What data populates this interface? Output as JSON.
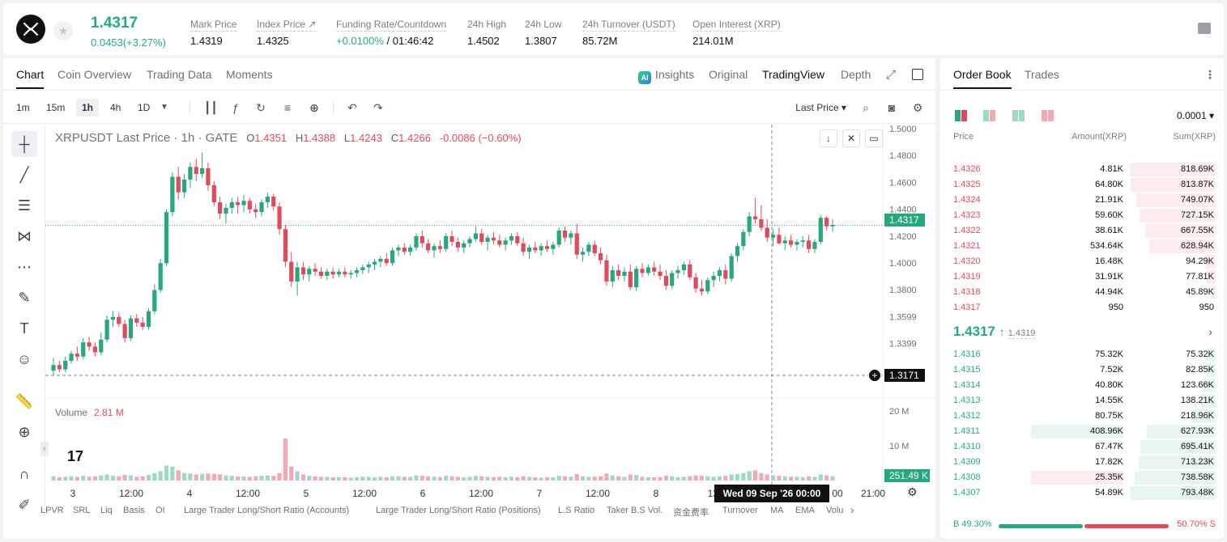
{
  "ticker": {
    "last_price": "1.4317",
    "change": "0.0453(+3.27%)",
    "stats": [
      {
        "label": "Mark Price",
        "value": "1.4319"
      },
      {
        "label": "Index Price ↗",
        "value": "1.4325"
      },
      {
        "label": "Funding Rate/Countdown",
        "value_green": "+0.0100%",
        "value": " / 01:46:42"
      },
      {
        "label": "24h High",
        "value": "1.4502"
      },
      {
        "label": "24h Low",
        "value": "1.3807"
      },
      {
        "label": "24h Turnover (USDT)",
        "value": "85.72M"
      },
      {
        "label": "Open Interest (XRP)",
        "value": "214.01M"
      }
    ]
  },
  "chart_tabs": [
    "Chart",
    "Coin Overview",
    "Trading Data",
    "Moments"
  ],
  "view_tabs": {
    "insights": "Insights",
    "original": "Original",
    "tradingview": "TradingView",
    "depth": "Depth",
    "ai_badge": "AI"
  },
  "intervals": [
    "1m",
    "15m",
    "1h",
    "4h",
    "1D"
  ],
  "price_source": "Last Price ▾",
  "legend": {
    "symbol": "XRPUSDT Last Price · 1h · GATE",
    "o_label": "O",
    "o": "1.4351",
    "h_label": "H",
    "h": "1.4388",
    "l_label": "L",
    "l": "1.4243",
    "c_label": "C",
    "c": "1.4266",
    "chg": "-0.0086 (−0.60%)"
  },
  "volume_legend": {
    "label": "Volume",
    "value": "2.81 M"
  },
  "tv_logo": "17",
  "crosshair_date": "Wed 09 Sep '26   00:00",
  "bottom_indicators": [
    "LPVR",
    "SRL",
    "Liq",
    "Basis",
    "OI",
    "Large Trader Long/Short Ratio (Accounts)",
    "Large Trader Long/Short Ratio (Positions)",
    "L.S Ratio",
    "Taker B.S Vol.",
    "资金费率",
    "Turnover",
    "MA",
    "EMA",
    "Volu"
  ],
  "chart_data": {
    "type": "candlestick",
    "price_axis": [
      "1.5000",
      "1.4800",
      "1.4600",
      "1.4400",
      "1.4200",
      "1.4000",
      "1.3800",
      "1.3599",
      "1.3399"
    ],
    "price_min": 1.32,
    "price_max": 1.5,
    "price_tags": {
      "current": "1.4317",
      "crosshair": "1.3171"
    },
    "volume_axis": [
      "20 M",
      "10 M"
    ],
    "volume_tag": "251.49 K",
    "time_axis": [
      "3",
      "12:00",
      "4",
      "12:00",
      "5",
      "12:00",
      "6",
      "12:00",
      "7",
      "12:00",
      "8",
      "12:",
      "00",
      "21:00"
    ],
    "colors": {
      "up": "#26a77c",
      "down": "#e04a5a",
      "vol_up": "#9fd9c4",
      "vol_down": "#f3a9b3"
    },
    "candles": [
      [
        1.329,
        1.338,
        1.326,
        1.333,
        0.9
      ],
      [
        1.333,
        1.336,
        1.328,
        1.33,
        0.7
      ],
      [
        1.33,
        1.339,
        1.328,
        1.336,
        0.8
      ],
      [
        1.336,
        1.343,
        1.334,
        1.341,
        0.9
      ],
      [
        1.341,
        1.346,
        1.336,
        1.339,
        0.8
      ],
      [
        1.339,
        1.352,
        1.337,
        1.349,
        1.0
      ],
      [
        1.349,
        1.353,
        1.343,
        1.346,
        0.8
      ],
      [
        1.346,
        1.349,
        1.339,
        1.342,
        0.9
      ],
      [
        1.342,
        1.356,
        1.34,
        1.351,
        1.1
      ],
      [
        1.351,
        1.368,
        1.349,
        1.365,
        1.3
      ],
      [
        1.365,
        1.371,
        1.36,
        1.367,
        1.0
      ],
      [
        1.367,
        1.37,
        1.36,
        1.362,
        0.9
      ],
      [
        1.362,
        1.365,
        1.349,
        1.352,
        1.2
      ],
      [
        1.352,
        1.368,
        1.35,
        1.366,
        1.1
      ],
      [
        1.366,
        1.369,
        1.36,
        1.363,
        0.8
      ],
      [
        1.363,
        1.367,
        1.358,
        1.36,
        0.9
      ],
      [
        1.36,
        1.373,
        1.358,
        1.371,
        1.2
      ],
      [
        1.371,
        1.39,
        1.369,
        1.386,
        1.6
      ],
      [
        1.386,
        1.408,
        1.384,
        1.405,
        2.0
      ],
      [
        1.405,
        1.443,
        1.403,
        1.441,
        3.2
      ],
      [
        1.441,
        1.469,
        1.438,
        1.466,
        3.0
      ],
      [
        1.466,
        1.473,
        1.45,
        1.455,
        2.2
      ],
      [
        1.455,
        1.468,
        1.451,
        1.464,
        1.6
      ],
      [
        1.464,
        1.476,
        1.458,
        1.473,
        1.5
      ],
      [
        1.473,
        1.479,
        1.463,
        1.468,
        1.3
      ],
      [
        1.468,
        1.483,
        1.465,
        1.472,
        1.4
      ],
      [
        1.472,
        1.476,
        1.456,
        1.46,
        1.5
      ],
      [
        1.46,
        1.463,
        1.445,
        1.448,
        1.4
      ],
      [
        1.448,
        1.452,
        1.436,
        1.44,
        1.3
      ],
      [
        1.44,
        1.447,
        1.433,
        1.444,
        1.1
      ],
      [
        1.444,
        1.451,
        1.44,
        1.448,
        1.0
      ],
      [
        1.448,
        1.452,
        1.44,
        1.446,
        0.9
      ],
      [
        1.446,
        1.453,
        1.441,
        1.449,
        0.9
      ],
      [
        1.449,
        1.451,
        1.44,
        1.443,
        0.8
      ],
      [
        1.443,
        1.447,
        1.437,
        1.441,
        0.9
      ],
      [
        1.441,
        1.45,
        1.438,
        1.448,
        1.0
      ],
      [
        1.448,
        1.455,
        1.444,
        1.452,
        1.1
      ],
      [
        1.452,
        1.454,
        1.442,
        1.445,
        1.0
      ],
      [
        1.445,
        1.448,
        1.425,
        1.429,
        1.6
      ],
      [
        1.429,
        1.432,
        1.402,
        1.406,
        9.0
      ],
      [
        1.406,
        1.413,
        1.388,
        1.392,
        3.0
      ],
      [
        1.392,
        1.406,
        1.382,
        1.402,
        2.0
      ],
      [
        1.402,
        1.406,
        1.393,
        1.397,
        1.3
      ],
      [
        1.397,
        1.403,
        1.392,
        1.401,
        1.0
      ],
      [
        1.401,
        1.405,
        1.396,
        1.399,
        0.9
      ],
      [
        1.399,
        1.402,
        1.394,
        1.396,
        0.8
      ],
      [
        1.396,
        1.401,
        1.393,
        1.399,
        0.8
      ],
      [
        1.399,
        1.402,
        1.394,
        1.397,
        0.7
      ],
      [
        1.397,
        1.401,
        1.395,
        1.399,
        0.7
      ],
      [
        1.399,
        1.402,
        1.395,
        1.397,
        0.7
      ],
      [
        1.397,
        1.4,
        1.394,
        1.398,
        0.6
      ],
      [
        1.398,
        1.402,
        1.395,
        1.4,
        0.7
      ],
      [
        1.4,
        1.404,
        1.397,
        1.402,
        0.8
      ],
      [
        1.402,
        1.406,
        1.398,
        1.404,
        0.8
      ],
      [
        1.404,
        1.408,
        1.4,
        1.406,
        0.7
      ],
      [
        1.406,
        1.41,
        1.402,
        1.408,
        0.8
      ],
      [
        1.408,
        1.412,
        1.403,
        1.405,
        0.7
      ],
      [
        1.405,
        1.416,
        1.403,
        1.414,
        0.9
      ],
      [
        1.414,
        1.418,
        1.41,
        1.416,
        0.9
      ],
      [
        1.416,
        1.419,
        1.411,
        1.413,
        0.8
      ],
      [
        1.413,
        1.418,
        1.41,
        1.416,
        0.8
      ],
      [
        1.416,
        1.426,
        1.414,
        1.424,
        1.1
      ],
      [
        1.424,
        1.428,
        1.416,
        1.419,
        1.0
      ],
      [
        1.419,
        1.422,
        1.412,
        1.414,
        0.9
      ],
      [
        1.414,
        1.419,
        1.409,
        1.417,
        0.8
      ],
      [
        1.417,
        1.421,
        1.412,
        1.415,
        0.7
      ],
      [
        1.415,
        1.426,
        1.413,
        1.424,
        1.0
      ],
      [
        1.424,
        1.428,
        1.417,
        1.42,
        0.9
      ],
      [
        1.42,
        1.423,
        1.413,
        1.416,
        0.8
      ],
      [
        1.416,
        1.421,
        1.412,
        1.419,
        0.7
      ],
      [
        1.419,
        1.424,
        1.416,
        1.422,
        0.8
      ],
      [
        1.422,
        1.431,
        1.42,
        1.426,
        1.0
      ],
      [
        1.426,
        1.429,
        1.418,
        1.42,
        0.9
      ],
      [
        1.42,
        1.425,
        1.414,
        1.423,
        0.8
      ],
      [
        1.423,
        1.427,
        1.418,
        1.421,
        0.7
      ],
      [
        1.421,
        1.425,
        1.416,
        1.418,
        0.8
      ],
      [
        1.418,
        1.423,
        1.414,
        1.421,
        0.7
      ],
      [
        1.421,
        1.426,
        1.418,
        1.424,
        0.8
      ],
      [
        1.424,
        1.427,
        1.417,
        1.419,
        0.7
      ],
      [
        1.419,
        1.423,
        1.41,
        1.413,
        0.9
      ],
      [
        1.413,
        1.418,
        1.408,
        1.416,
        0.8
      ],
      [
        1.416,
        1.42,
        1.412,
        1.414,
        0.7
      ],
      [
        1.414,
        1.419,
        1.41,
        1.417,
        0.6
      ],
      [
        1.417,
        1.421,
        1.413,
        1.415,
        0.7
      ],
      [
        1.415,
        1.42,
        1.411,
        1.418,
        0.7
      ],
      [
        1.418,
        1.43,
        1.416,
        1.428,
        1.0
      ],
      [
        1.428,
        1.431,
        1.42,
        1.423,
        0.9
      ],
      [
        1.423,
        1.428,
        1.418,
        1.426,
        0.8
      ],
      [
        1.426,
        1.433,
        1.408,
        1.411,
        1.4
      ],
      [
        1.411,
        1.416,
        1.406,
        1.413,
        0.9
      ],
      [
        1.413,
        1.42,
        1.41,
        1.418,
        0.8
      ],
      [
        1.418,
        1.421,
        1.41,
        1.412,
        0.8
      ],
      [
        1.412,
        1.416,
        1.404,
        1.407,
        0.9
      ],
      [
        1.407,
        1.411,
        1.389,
        1.392,
        1.5
      ],
      [
        1.392,
        1.403,
        1.388,
        1.4,
        1.1
      ],
      [
        1.4,
        1.404,
        1.393,
        1.396,
        0.9
      ],
      [
        1.396,
        1.402,
        1.392,
        1.399,
        0.8
      ],
      [
        1.399,
        1.404,
        1.386,
        1.388,
        1.3
      ],
      [
        1.388,
        1.403,
        1.385,
        1.401,
        1.2
      ],
      [
        1.401,
        1.405,
        1.395,
        1.398,
        0.8
      ],
      [
        1.398,
        1.404,
        1.396,
        1.402,
        0.7
      ],
      [
        1.402,
        1.406,
        1.396,
        1.399,
        0.7
      ],
      [
        1.399,
        1.404,
        1.393,
        1.396,
        0.7
      ],
      [
        1.396,
        1.4,
        1.386,
        1.389,
        1.0
      ],
      [
        1.389,
        1.4,
        1.387,
        1.398,
        0.9
      ],
      [
        1.398,
        1.403,
        1.394,
        1.4,
        0.7
      ],
      [
        1.4,
        1.406,
        1.397,
        1.404,
        0.8
      ],
      [
        1.404,
        1.407,
        1.393,
        1.395,
        0.9
      ],
      [
        1.395,
        1.398,
        1.384,
        1.387,
        1.1
      ],
      [
        1.387,
        1.393,
        1.382,
        1.385,
        1.0
      ],
      [
        1.385,
        1.395,
        1.383,
        1.393,
        0.9
      ],
      [
        1.393,
        1.399,
        1.388,
        1.396,
        0.8
      ],
      [
        1.396,
        1.402,
        1.392,
        1.4,
        0.9
      ],
      [
        1.4,
        1.404,
        1.39,
        1.394,
        1.0
      ],
      [
        1.394,
        1.412,
        1.392,
        1.41,
        1.3
      ],
      [
        1.41,
        1.419,
        1.406,
        1.417,
        1.4
      ],
      [
        1.417,
        1.429,
        1.414,
        1.427,
        1.6
      ],
      [
        1.427,
        1.441,
        1.424,
        1.438,
        2.0
      ],
      [
        1.438,
        1.451,
        1.433,
        1.436,
        2.2
      ],
      [
        1.436,
        1.446,
        1.428,
        1.43,
        1.6
      ],
      [
        1.43,
        1.436,
        1.42,
        1.423,
        1.3
      ],
      [
        1.423,
        1.429,
        1.417,
        1.425,
        1.1
      ],
      [
        1.425,
        1.43,
        1.418,
        1.419,
        1.0
      ],
      [
        1.419,
        1.424,
        1.414,
        1.421,
        0.9
      ],
      [
        1.421,
        1.425,
        1.416,
        1.418,
        0.8
      ],
      [
        1.418,
        1.422,
        1.414,
        1.42,
        0.8
      ],
      [
        1.42,
        1.424,
        1.416,
        1.421,
        0.7
      ],
      [
        1.421,
        1.425,
        1.412,
        1.415,
        0.9
      ],
      [
        1.415,
        1.422,
        1.412,
        1.42,
        0.8
      ],
      [
        1.42,
        1.439,
        1.418,
        1.437,
        1.3
      ],
      [
        1.437,
        1.438,
        1.428,
        1.431,
        1.1
      ],
      [
        1.431,
        1.436,
        1.427,
        1.432,
        0.9
      ]
    ]
  },
  "orderbook": {
    "tabs": [
      "Order Book",
      "Trades"
    ],
    "tick": "0.0001 ▾",
    "headers": {
      "price": "Price",
      "amount": "Amount(XRP)",
      "sum": "Sum(XRP)"
    },
    "asks": [
      {
        "price": "1.4326",
        "amount": "4.81K",
        "sum": "818.69K",
        "depth": 1.0,
        "amt_frac": 0.0
      },
      {
        "price": "1.4325",
        "amount": "64.80K",
        "sum": "813.87K",
        "depth": 0.99,
        "amt_frac": 0.0
      },
      {
        "price": "1.4324",
        "amount": "21.91K",
        "sum": "749.07K",
        "depth": 0.92,
        "amt_frac": 0.0
      },
      {
        "price": "1.4323",
        "amount": "59.60K",
        "sum": "727.15K",
        "depth": 0.89,
        "amt_frac": 0.0
      },
      {
        "price": "1.4322",
        "amount": "38.61K",
        "sum": "667.55K",
        "depth": 0.82,
        "amt_frac": 0.0
      },
      {
        "price": "1.4321",
        "amount": "534.64K",
        "sum": "628.94K",
        "depth": 0.77,
        "amt_frac": 0.0
      },
      {
        "price": "1.4320",
        "amount": "16.48K",
        "sum": "94.29K",
        "depth": 0.12,
        "amt_frac": 0.0
      },
      {
        "price": "1.4319",
        "amount": "31.91K",
        "sum": "77.81K",
        "depth": 0.1,
        "amt_frac": 0.0
      },
      {
        "price": "1.4318",
        "amount": "44.94K",
        "sum": "45.89K",
        "depth": 0.06,
        "amt_frac": 0.0
      },
      {
        "price": "1.4317",
        "amount": "950",
        "sum": "950",
        "depth": 0.0,
        "amt_frac": 0.0
      }
    ],
    "mid": {
      "price": "1.4317",
      "arrow": "↑",
      "mark": "1.4319",
      "chevron": "›"
    },
    "bids": [
      {
        "price": "1.4316",
        "amount": "75.32K",
        "sum": "75.32K",
        "depth": 0.1,
        "amt_frac": 0.0
      },
      {
        "price": "1.4315",
        "amount": "7.52K",
        "sum": "82.85K",
        "depth": 0.1,
        "amt_frac": 0.0
      },
      {
        "price": "1.4314",
        "amount": "40.80K",
        "sum": "123.66K",
        "depth": 0.16,
        "amt_frac": 0.0
      },
      {
        "price": "1.4313",
        "amount": "14.55K",
        "sum": "138.21K",
        "depth": 0.17,
        "amt_frac": 0.0
      },
      {
        "price": "1.4312",
        "amount": "80.75K",
        "sum": "218.96K",
        "depth": 0.28,
        "amt_frac": 0.0
      },
      {
        "price": "1.4311",
        "amount": "408.96K",
        "sum": "627.93K",
        "depth": 0.8,
        "amt_frac": 0.6
      },
      {
        "price": "1.4310",
        "amount": "67.47K",
        "sum": "695.41K",
        "depth": 0.88,
        "amt_frac": 0.0
      },
      {
        "price": "1.4309",
        "amount": "17.82K",
        "sum": "713.23K",
        "depth": 0.9,
        "amt_frac": 0.0
      },
      {
        "price": "1.4308",
        "amount": "25.35K",
        "sum": "738.58K",
        "depth": 0.94,
        "amt_frac": 0.6
      },
      {
        "price": "1.4307",
        "amount": "54.89K",
        "sum": "793.48K",
        "depth": 1.0,
        "amt_frac": 0.0
      }
    ],
    "buy_label": "B 49.30%",
    "sell_label": "50.70% S",
    "buy_frac": 0.493
  }
}
